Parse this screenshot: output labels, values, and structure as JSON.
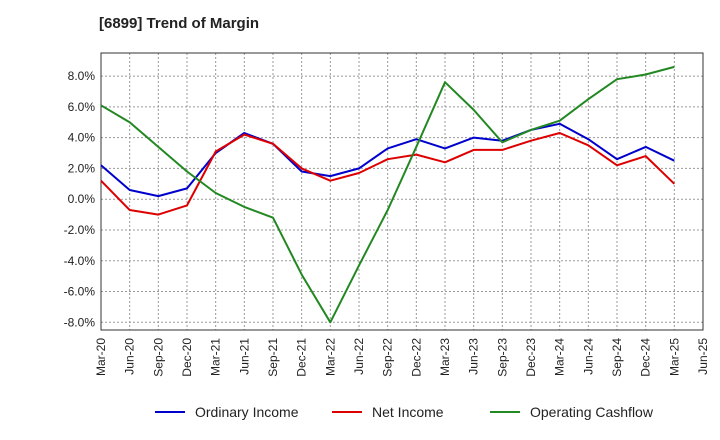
{
  "chart_data": {
    "type": "line",
    "title": "[6899]  Trend of Margin",
    "xlabel": "",
    "ylabel": "",
    "x": [
      "Mar-20",
      "Jun-20",
      "Sep-20",
      "Dec-20",
      "Mar-21",
      "Jun-21",
      "Sep-21",
      "Dec-21",
      "Mar-22",
      "Jun-22",
      "Sep-22",
      "Dec-22",
      "Mar-23",
      "Jun-23",
      "Sep-23",
      "Dec-23",
      "Mar-24",
      "Jun-24",
      "Sep-24",
      "Dec-24",
      "Mar-25",
      "Jun-25"
    ],
    "ylim": [
      -8.5,
      9.5
    ],
    "yticks": [
      8.0,
      6.0,
      4.0,
      2.0,
      0.0,
      -2.0,
      -4.0,
      -6.0,
      -8.0
    ],
    "ytick_labels": [
      "8.0%",
      "6.0%",
      "4.0%",
      "2.0%",
      "0.0%",
      "-2.0%",
      "-4.0%",
      "-6.0%",
      "-8.0%"
    ],
    "grid": true,
    "legend_position": "bottom",
    "series": [
      {
        "name": "Ordinary Income",
        "color": "#0000cc",
        "values": [
          2.2,
          0.6,
          0.2,
          0.7,
          3.0,
          4.3,
          3.6,
          1.8,
          1.5,
          2.0,
          3.3,
          3.9,
          3.3,
          4.0,
          3.8,
          4.5,
          4.9,
          3.9,
          2.6,
          3.4,
          2.5,
          null
        ]
      },
      {
        "name": "Net Income",
        "color": "#dd0000",
        "values": [
          1.2,
          -0.7,
          -1.0,
          -0.4,
          3.1,
          4.2,
          3.6,
          2.0,
          1.2,
          1.7,
          2.6,
          2.9,
          2.4,
          3.2,
          3.2,
          3.8,
          4.3,
          3.5,
          2.2,
          2.8,
          1.0,
          null
        ]
      },
      {
        "name": "Operating Cashflow",
        "color": "#228822",
        "values": [
          6.1,
          5.0,
          3.4,
          1.8,
          0.4,
          -0.5,
          -1.2,
          -4.9,
          -8.0,
          -4.3,
          -0.7,
          3.4,
          7.6,
          5.8,
          3.7,
          4.5,
          5.1,
          6.5,
          7.8,
          8.1,
          8.6,
          null
        ]
      }
    ]
  }
}
